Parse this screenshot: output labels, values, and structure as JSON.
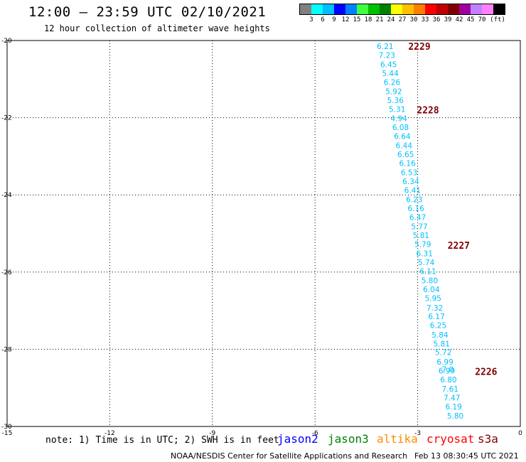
{
  "title": "12:00 – 23:59 UTC 02/10/2021",
  "subtitle": "12 hour collection of altimeter wave heights",
  "legend": {
    "colors": [
      "#808080",
      "#00ffff",
      "#00bfff",
      "#0000ff",
      "#0080ff",
      "#40ff40",
      "#00c000",
      "#008000",
      "#ffff00",
      "#ffc000",
      "#ff8000",
      "#ff0000",
      "#c00000",
      "#800000",
      "#a000a0",
      "#c080ff",
      "#ff80ff",
      "#000000"
    ],
    "labels": [
      "3",
      "6",
      "9",
      "12",
      "15",
      "18",
      "21",
      "24",
      "27",
      "30",
      "33",
      "36",
      "39",
      "42",
      "45",
      "70",
      "(ft)"
    ]
  },
  "axes": {
    "x_ticks": [
      "-15",
      "-12",
      "-9",
      "-6",
      "-3",
      "0"
    ],
    "y_ticks": [
      "-20",
      "-22",
      "-24",
      "-26",
      "-28",
      "-30"
    ],
    "lon_range": [
      -15,
      0
    ],
    "lat_range": [
      -30,
      -20
    ]
  },
  "chart_data": {
    "type": "scatter",
    "measurements": [
      {
        "lon": -3.95,
        "lat": -20.15,
        "value": "6.21"
      },
      {
        "lon": -3.9,
        "lat": -20.38,
        "value": "7.23"
      },
      {
        "lon": -3.85,
        "lat": -20.62,
        "value": "6.45"
      },
      {
        "lon": -3.8,
        "lat": -20.85,
        "value": "5.44"
      },
      {
        "lon": -3.75,
        "lat": -21.08,
        "value": "6.26"
      },
      {
        "lon": -3.7,
        "lat": -21.32,
        "value": "5.92"
      },
      {
        "lon": -3.65,
        "lat": -21.55,
        "value": "5.36"
      },
      {
        "lon": -3.6,
        "lat": -21.78,
        "value": "5.31"
      },
      {
        "lon": -3.55,
        "lat": -22.02,
        "value": "4.94"
      },
      {
        "lon": -3.5,
        "lat": -22.25,
        "value": "6.08"
      },
      {
        "lon": -3.45,
        "lat": -22.48,
        "value": "6.64"
      },
      {
        "lon": -3.4,
        "lat": -22.72,
        "value": "6.44"
      },
      {
        "lon": -3.35,
        "lat": -22.95,
        "value": "6.65"
      },
      {
        "lon": -3.3,
        "lat": -23.18,
        "value": "6.16"
      },
      {
        "lon": -3.25,
        "lat": -23.42,
        "value": "6.53"
      },
      {
        "lon": -3.2,
        "lat": -23.65,
        "value": "6.34"
      },
      {
        "lon": -3.15,
        "lat": -23.88,
        "value": "6.41"
      },
      {
        "lon": -3.1,
        "lat": -24.12,
        "value": "6.23"
      },
      {
        "lon": -3.05,
        "lat": -24.35,
        "value": "6.16"
      },
      {
        "lon": -3.0,
        "lat": -24.58,
        "value": "6.47"
      },
      {
        "lon": -2.95,
        "lat": -24.82,
        "value": "5.77"
      },
      {
        "lon": -2.9,
        "lat": -25.05,
        "value": "5.81"
      },
      {
        "lon": -2.85,
        "lat": -25.28,
        "value": "5.79"
      },
      {
        "lon": -2.8,
        "lat": -25.52,
        "value": "6.31"
      },
      {
        "lon": -2.75,
        "lat": -25.75,
        "value": "5.74"
      },
      {
        "lon": -2.7,
        "lat": -25.98,
        "value": "6.11"
      },
      {
        "lon": -2.65,
        "lat": -26.22,
        "value": "5.80"
      },
      {
        "lon": -2.6,
        "lat": -26.45,
        "value": "6.04"
      },
      {
        "lon": -2.55,
        "lat": -26.68,
        "value": "5.95"
      },
      {
        "lon": -2.5,
        "lat": -26.92,
        "value": "7.32"
      },
      {
        "lon": -2.45,
        "lat": -27.15,
        "value": "6.17"
      },
      {
        "lon": -2.4,
        "lat": -27.38,
        "value": "6.25"
      },
      {
        "lon": -2.35,
        "lat": -27.62,
        "value": "5.84"
      },
      {
        "lon": -2.3,
        "lat": -27.85,
        "value": "5.81"
      },
      {
        "lon": -2.25,
        "lat": -28.08,
        "value": "5.72"
      },
      {
        "lon": -2.2,
        "lat": -28.32,
        "value": "6.99"
      },
      {
        "lon": -2.15,
        "lat": -28.55,
        "value": "6.99"
      },
      {
        "lon": -2.1,
        "lat": -28.78,
        "value": "6.80"
      },
      {
        "lon": -2.05,
        "lat": -29.02,
        "value": "7.61"
      },
      {
        "lon": -2.0,
        "lat": -29.25,
        "value": "7.47"
      },
      {
        "lon": -1.95,
        "lat": -29.48,
        "value": "6.19"
      },
      {
        "lon": -1.9,
        "lat": -29.72,
        "value": "5.80"
      }
    ],
    "overlap_label": {
      "lon": -2.12,
      "lat": -28.52,
      "value": "7.0"
    },
    "pass_labels": [
      {
        "lon": -2.95,
        "lat": -20.15,
        "text": "2229"
      },
      {
        "lon": -2.7,
        "lat": -21.8,
        "text": "2228"
      },
      {
        "lon": -1.8,
        "lat": -25.3,
        "text": "2227"
      },
      {
        "lon": -1.0,
        "lat": -28.57,
        "text": "2226"
      }
    ],
    "marker_color": "#00bfff",
    "pass_label_color": "#800000"
  },
  "note": "note: 1) Time is in UTC; 2) SWH is in feet",
  "satellites": [
    {
      "name": "jason2",
      "color": "#0000ff"
    },
    {
      "name": "jason3",
      "color": "#008000"
    },
    {
      "name": "altika",
      "color": "#ff8c00"
    },
    {
      "name": "cryosat",
      "color": "#ff0000"
    },
    {
      "name": "s3a",
      "color": "#800000"
    }
  ],
  "footer": "NOAA/NESDIS Center for Satellite Applications and Research",
  "footer_time": "Feb 13 08:30:45 UTC 2021"
}
